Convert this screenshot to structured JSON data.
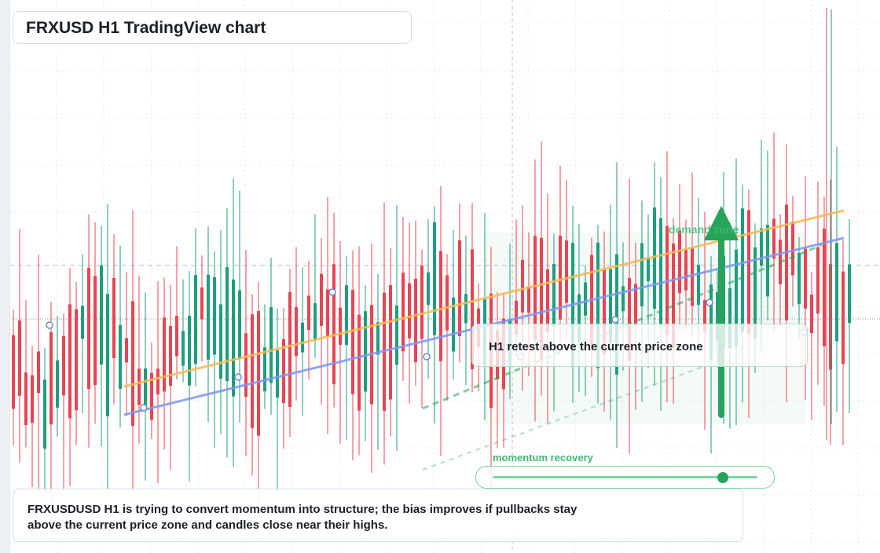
{
  "title": "FRXUSD H1 TradingView chart",
  "callout": "H1 retest above the current price zone",
  "zone_label": "demand zone",
  "momentum": {
    "label": "momentum recovery",
    "level": 0.87
  },
  "summary": "FRXUSDUSD H1 is trying to convert momentum into structure; the bias improves if pullbacks stay above the current price zone and candles close near their highs.",
  "colors": {
    "bull": "#1f9e7d",
    "bear": "#e84452",
    "ema_fast": "#f7b955",
    "ema_slow": "#7d96f2",
    "zone": "#27a35a",
    "accent_text": "#3fb873"
  },
  "chart_data": {
    "type": "candlestick",
    "timeframe": "H1",
    "symbol": "FRXUSD",
    "candle_count": 134,
    "lines": [
      "fast moving average",
      "slow moving average",
      "rising support trend line"
    ],
    "arrow": "up",
    "grid": true
  }
}
